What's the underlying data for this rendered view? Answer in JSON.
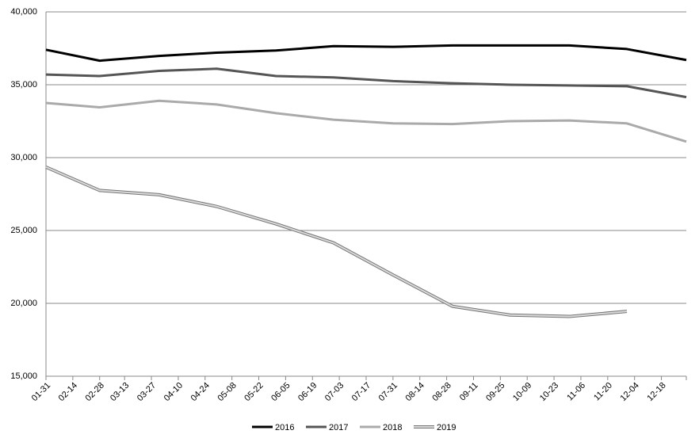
{
  "chart_data": {
    "type": "line",
    "x": [
      "01-31",
      "02-28",
      "03-31",
      "04-30",
      "05-31",
      "06-30",
      "07-31",
      "08-31",
      "09-30",
      "10-31",
      "11-30",
      "12-31"
    ],
    "series": [
      {
        "name": "2016",
        "color": "#000000",
        "values": [
          37400,
          36650,
          36980,
          37200,
          37350,
          37650,
          37600,
          37700,
          37700,
          37700,
          37450,
          36700
        ]
      },
      {
        "name": "2017",
        "color": "#555555",
        "values": [
          35700,
          35600,
          35950,
          36100,
          35600,
          35500,
          35250,
          35100,
          35000,
          34950,
          34900,
          34150
        ]
      },
      {
        "name": "2018",
        "color": "#aaaaaa",
        "values": [
          33750,
          33450,
          33900,
          33650,
          33050,
          32600,
          32350,
          32300,
          32500,
          32550,
          32350,
          31100
        ]
      },
      {
        "name": "2019",
        "color": "#d9d9d9",
        "values": [
          29350,
          27750,
          27450,
          26650,
          25450,
          24150,
          21950,
          19800,
          19200,
          19100,
          19450,
          null
        ]
      }
    ],
    "xlim": [
      "01-31",
      "12-31"
    ],
    "xticks": [
      "01-31",
      "02-14",
      "02-28",
      "03-13",
      "03-27",
      "04-10",
      "04-24",
      "05-08",
      "05-22",
      "06-05",
      "06-19",
      "07-03",
      "07-17",
      "07-31",
      "08-14",
      "08-28",
      "09-11",
      "09-25",
      "10-09",
      "10-23",
      "11-06",
      "11-20",
      "12-04",
      "12-18"
    ],
    "ylim": [
      15000,
      40000
    ],
    "yticks": [
      {
        "value": 15000,
        "label": "15,000"
      },
      {
        "value": 20000,
        "label": "20,000"
      },
      {
        "value": 25000,
        "label": "25,000"
      },
      {
        "value": 30000,
        "label": "30,000"
      },
      {
        "value": 35000,
        "label": "35,000"
      },
      {
        "value": 40000,
        "label": "40,000"
      }
    ],
    "grid": true,
    "legend": "bottom"
  }
}
